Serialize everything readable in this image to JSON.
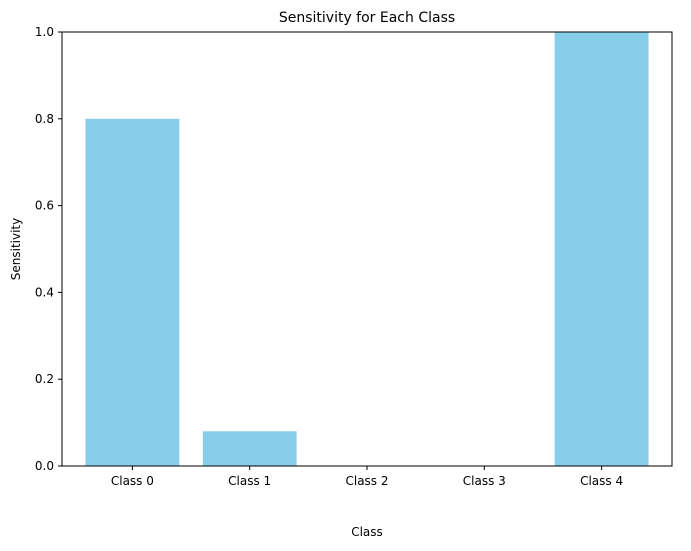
{
  "chart_data": {
    "type": "bar",
    "title": "Sensitivity for Each Class",
    "xlabel": "Class",
    "ylabel": "Sensitivity",
    "categories": [
      "Class 0",
      "Class 1",
      "Class 2",
      "Class 3",
      "Class 4"
    ],
    "values": [
      0.8,
      0.08,
      0.0,
      0.0,
      1.0
    ],
    "ylim": [
      0,
      1.0
    ],
    "yticks": [
      "0.0",
      "0.2",
      "0.4",
      "0.6",
      "0.8",
      "1.0"
    ],
    "grid": false,
    "bar_color": "#87ceeb"
  }
}
